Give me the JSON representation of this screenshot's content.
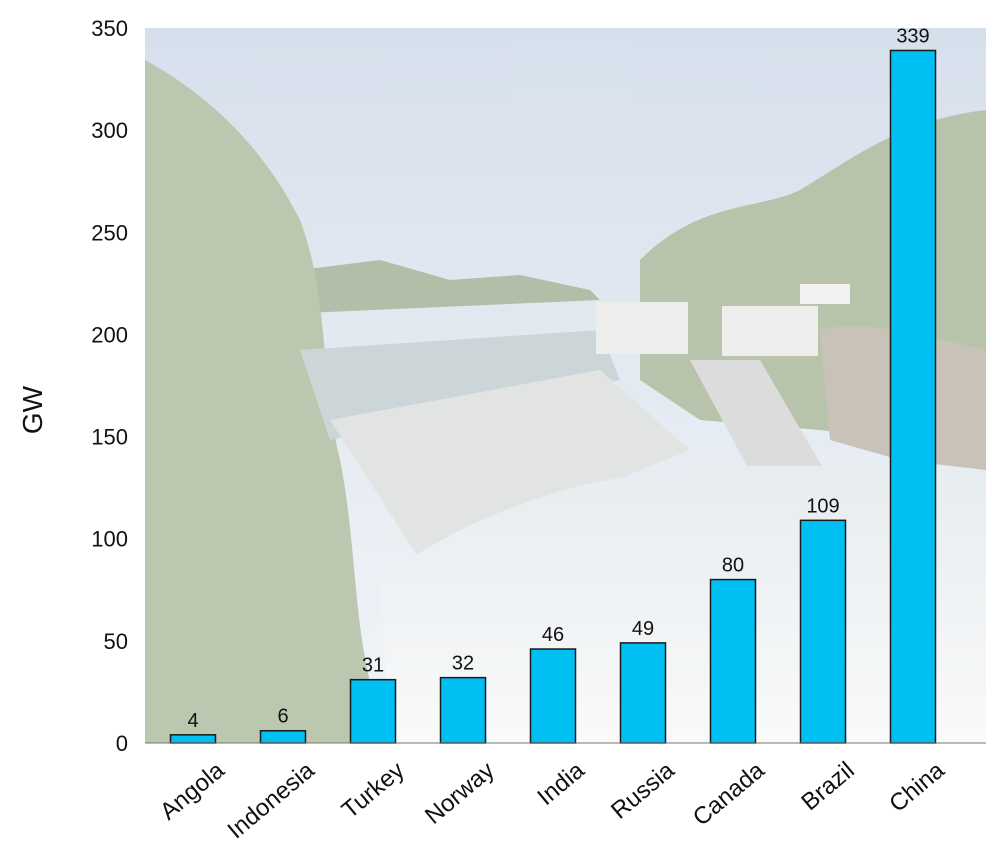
{
  "chart_data": {
    "type": "bar",
    "ylabel": "GW",
    "ylim": [
      0,
      350
    ],
    "yticks": [
      0,
      50,
      100,
      150,
      200,
      250,
      300,
      350
    ],
    "categories": [
      "Angola",
      "Indonesia",
      "Turkey",
      "Norway",
      "India",
      "Russia",
      "Canada",
      "Brazil",
      "China"
    ],
    "values": [
      4,
      6,
      31,
      32,
      46,
      49,
      80,
      109,
      339
    ],
    "data_labels": [
      "4",
      "6",
      "31",
      "32",
      "46",
      "49",
      "80",
      "109",
      "339"
    ],
    "bar_color": "#00BFF3",
    "bar_outline": "#1a1a1a",
    "background": "photo of a hydroelectric dam spillway with forest and sky, faded",
    "grid": false,
    "legend": "none"
  }
}
